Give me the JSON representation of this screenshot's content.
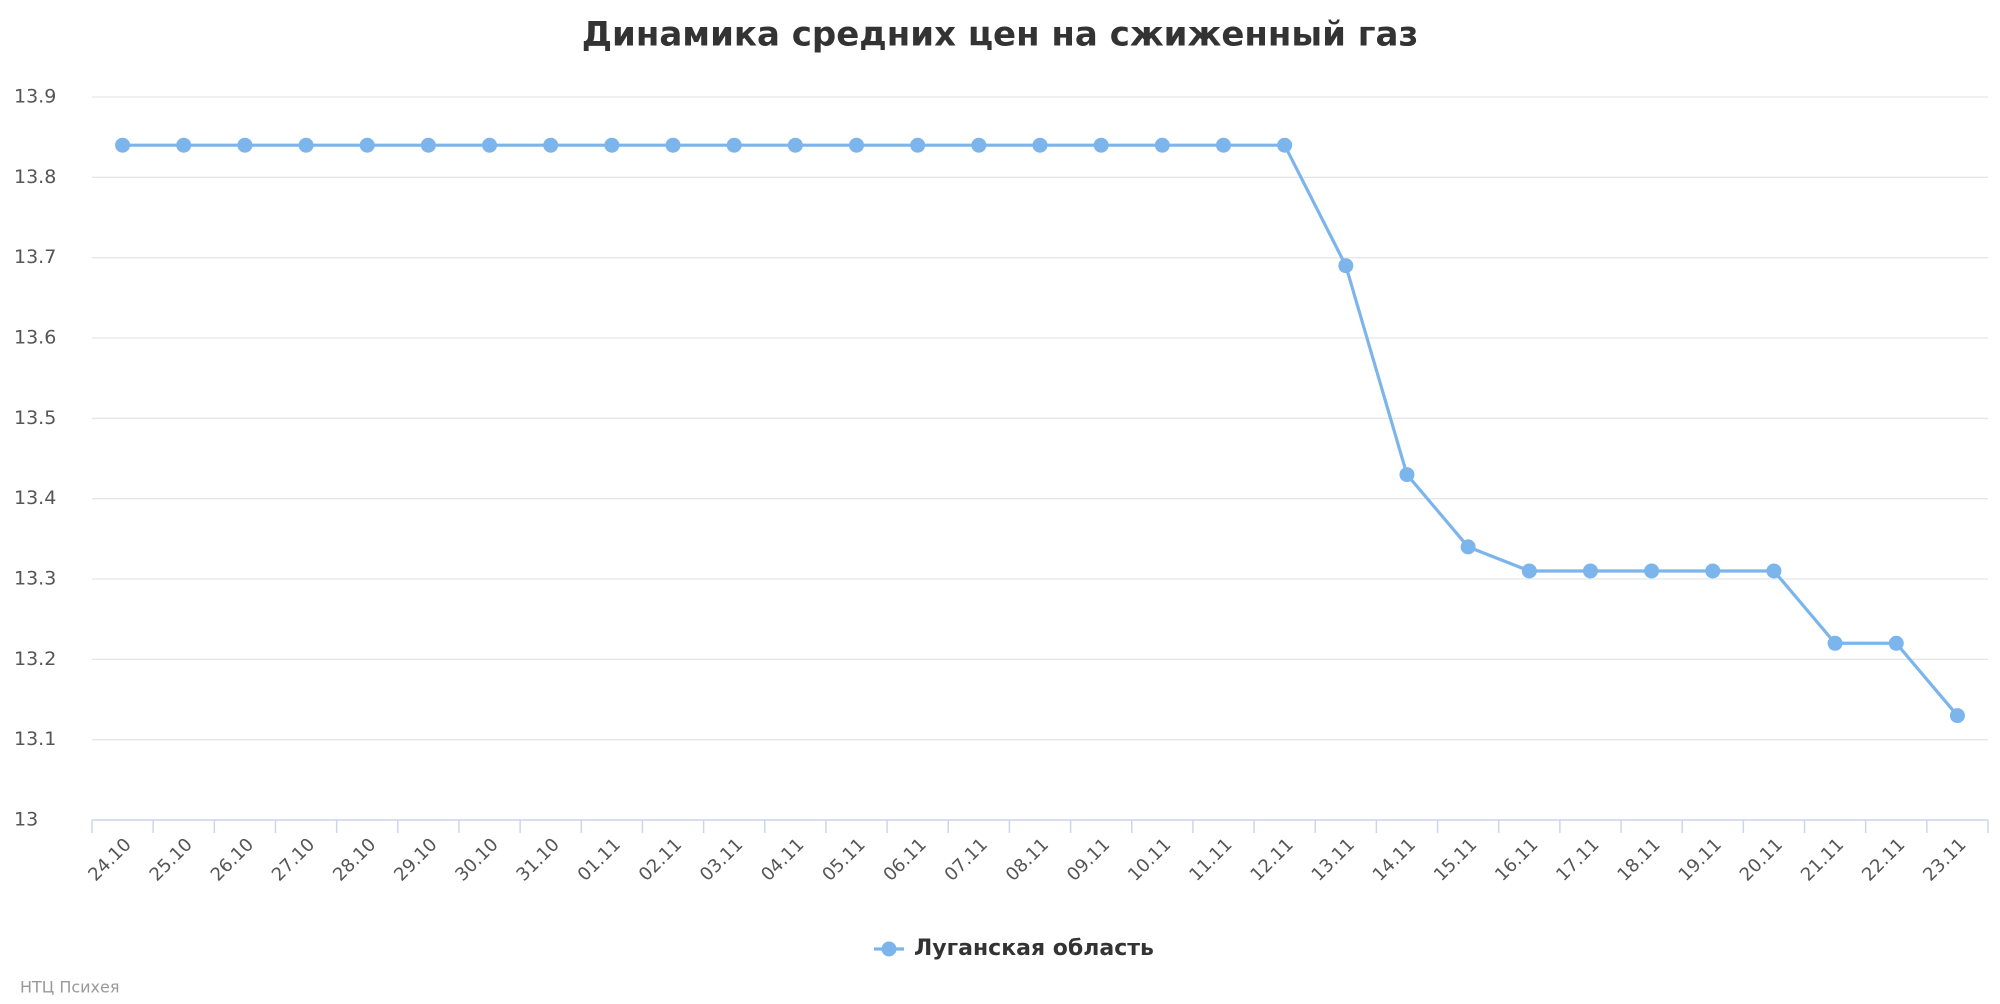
{
  "chart_data": {
    "type": "line",
    "title": "Динамика средних цен на сжиженный газ",
    "categories": [
      "24.10",
      "25.10",
      "26.10",
      "27.10",
      "28.10",
      "29.10",
      "30.10",
      "31.10",
      "01.11",
      "02.11",
      "03.11",
      "04.11",
      "05.11",
      "06.11",
      "07.11",
      "08.11",
      "09.11",
      "10.11",
      "11.11",
      "12.11",
      "13.11",
      "14.11",
      "15.11",
      "16.11",
      "17.11",
      "18.11",
      "19.11",
      "20.11",
      "21.11",
      "22.11",
      "23.11"
    ],
    "series": [
      {
        "name": "Луганская область",
        "color": "#7cb5ec",
        "values": [
          13.84,
          13.84,
          13.84,
          13.84,
          13.84,
          13.84,
          13.84,
          13.84,
          13.84,
          13.84,
          13.84,
          13.84,
          13.84,
          13.84,
          13.84,
          13.84,
          13.84,
          13.84,
          13.84,
          13.84,
          13.69,
          13.43,
          13.34,
          13.31,
          13.31,
          13.31,
          13.31,
          13.31,
          13.22,
          13.22,
          13.13
        ]
      }
    ],
    "ylim": [
      13,
      13.9
    ],
    "yticks": [
      13,
      13.1,
      13.2,
      13.3,
      13.4,
      13.5,
      13.6,
      13.7,
      13.8,
      13.9
    ],
    "grid": true,
    "legend": "bottom",
    "credits": "НТЦ Психея"
  }
}
